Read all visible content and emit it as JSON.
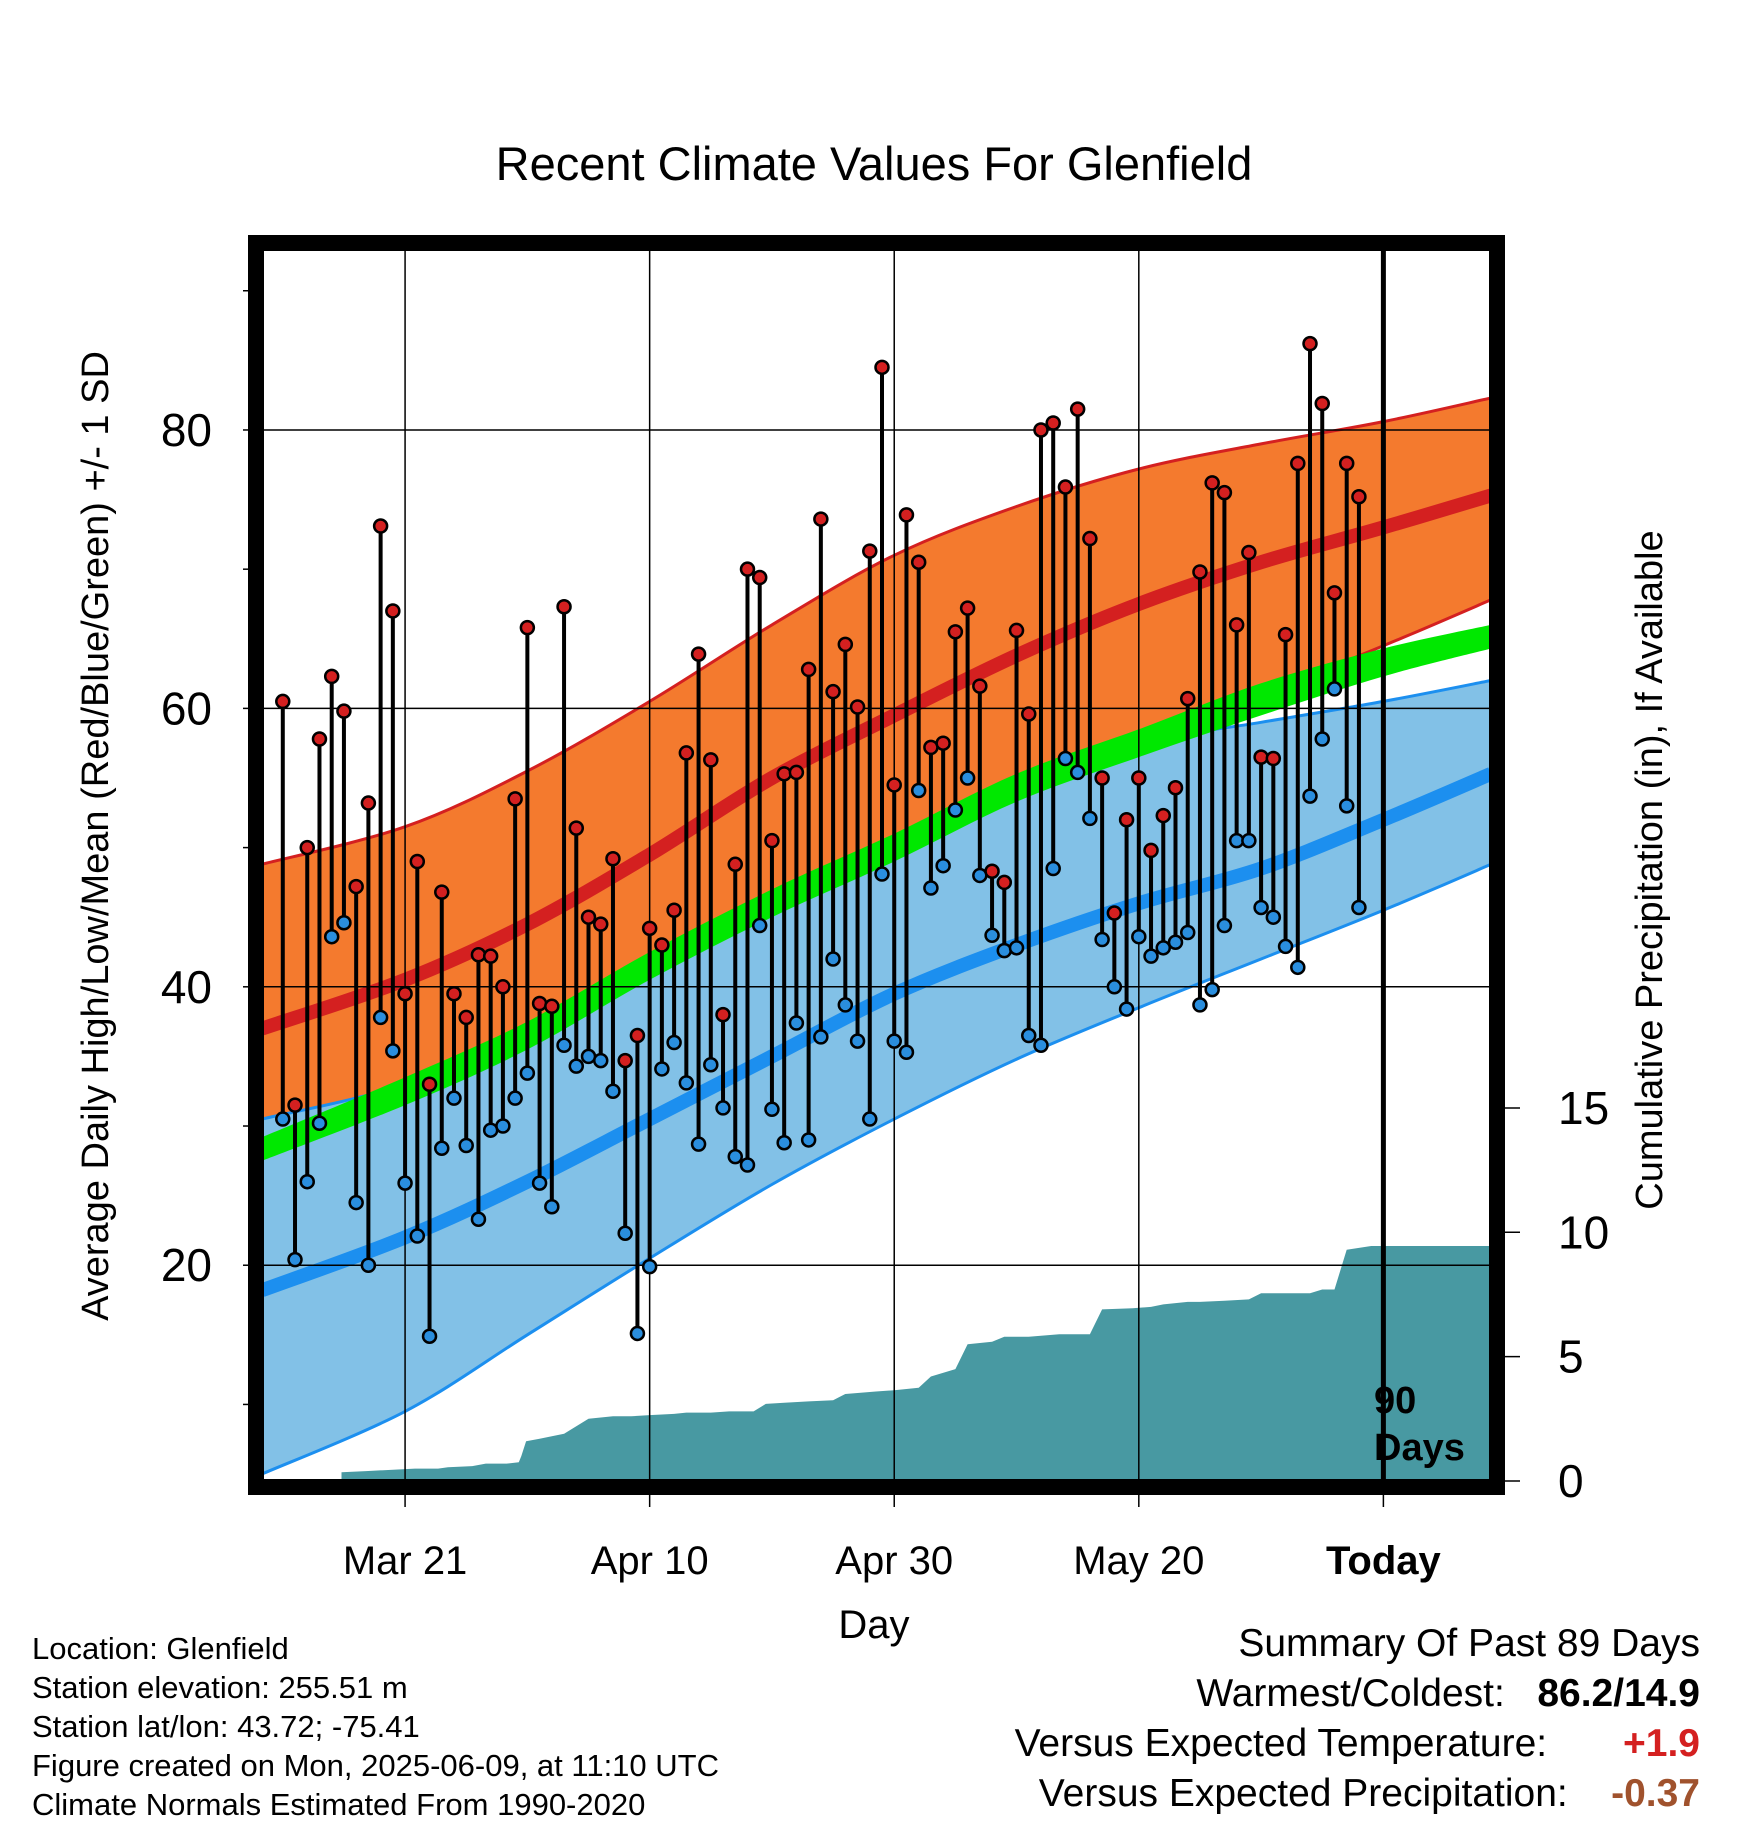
{
  "chart_data": {
    "type": "line",
    "title": "Recent Climate Values For Glenfield",
    "xlabel": "Day",
    "ylabel": "Average Daily High/Low/Mean (Red/Blue/Green) +/- 1 SD",
    "y2label": "Cumulative Precipitation (in), If Available",
    "x_ticks": [
      "Mar 21",
      "Apr 10",
      "Apr 30",
      "May 20",
      "Today"
    ],
    "x_tick_days": [
      10,
      30,
      50,
      70,
      90
    ],
    "xlim": [
      -1.7,
      98.8
    ],
    "ylim": [
      4.5,
      93
    ],
    "y_ticks": [
      20,
      40,
      60,
      80
    ],
    "y2lim": [
      0,
      17
    ],
    "y2_ticks": [
      0,
      5,
      10,
      15
    ],
    "grid": true,
    "today_day": 90,
    "today_label": [
      "90",
      "Days"
    ],
    "normals": {
      "day": [
        -1.7,
        10,
        20,
        30,
        40,
        50,
        60,
        70,
        80,
        90,
        98.8
      ],
      "high_mean": [
        37.0,
        40.5,
        44.5,
        49.5,
        55.0,
        59.5,
        63.8,
        67.5,
        70.5,
        73.0,
        75.3
      ],
      "high_upper": [
        48.8,
        51.5,
        55.5,
        60.5,
        66.0,
        71.0,
        74.5,
        77.2,
        79.0,
        80.6,
        82.3
      ],
      "high_lower": [
        27.0,
        30.0,
        34.0,
        39.0,
        44.2,
        49.0,
        53.5,
        57.8,
        61.0,
        64.5,
        67.8
      ],
      "mean_lower": [
        27.5,
        31.5,
        35.5,
        40.5,
        45.0,
        49.0,
        53.3,
        56.5,
        59.5,
        62.3,
        64.3
      ],
      "mean_upper": [
        29.2,
        33.5,
        37.5,
        42.5,
        47.0,
        51.0,
        55.3,
        58.5,
        61.8,
        64.3,
        66.0
      ],
      "low_mean": [
        18.2,
        22.0,
        26.0,
        30.5,
        35.0,
        39.5,
        43.0,
        46.0,
        48.5,
        52.0,
        55.3
      ],
      "low_upper": [
        30.5,
        33.0,
        37.0,
        41.5,
        46.5,
        50.5,
        54.5,
        57.5,
        59.0,
        60.5,
        62.0
      ],
      "low_lower": [
        5.0,
        9.5,
        15.0,
        20.5,
        25.8,
        30.5,
        34.8,
        38.5,
        42.0,
        45.5,
        48.8
      ]
    },
    "highs": [
      60.5,
      31.5,
      50,
      57.8,
      62.3,
      59.8,
      47.2,
      53.2,
      73.1,
      67.0,
      39.5,
      49.0,
      33.0,
      46.8,
      39.5,
      37.8,
      42.3,
      42.2,
      40.0,
      53.5,
      65.8,
      38.8,
      38.6,
      67.3,
      51.4,
      45.0,
      44.5,
      49.2,
      34.7,
      36.5,
      44.2,
      43.0,
      45.5,
      56.8,
      63.9,
      56.3,
      38.0,
      48.8,
      70.0,
      69.4,
      50.5,
      55.3,
      55.4,
      62.8,
      73.6,
      61.2,
      64.6,
      60.1,
      71.3,
      84.5,
      54.5,
      73.9,
      70.5,
      57.2,
      57.5,
      65.5,
      67.2,
      61.6,
      48.3,
      47.5,
      65.6,
      59.6,
      80.0,
      80.5,
      75.9,
      81.5,
      72.2,
      55.0,
      45.3,
      52.0,
      55.0,
      49.8,
      52.3,
      54.3,
      60.7,
      69.8,
      76.2,
      75.5,
      66.0,
      71.2,
      56.5,
      56.4,
      65.3,
      77.6,
      86.2,
      81.9,
      68.3,
      77.6,
      75.2
    ],
    "lows": [
      30.5,
      20.4,
      26.0,
      30.2,
      43.6,
      44.6,
      24.5,
      20.0,
      37.8,
      35.4,
      25.9,
      22.1,
      14.9,
      28.4,
      32.0,
      28.6,
      23.3,
      29.7,
      30.0,
      32.0,
      33.8,
      25.9,
      24.2,
      35.8,
      34.3,
      35.0,
      34.7,
      32.5,
      22.3,
      15.1,
      19.9,
      34.1,
      36.0,
      33.1,
      28.7,
      34.4,
      31.3,
      27.8,
      27.2,
      44.4,
      31.2,
      28.8,
      37.4,
      29.0,
      36.4,
      42.0,
      38.7,
      36.1,
      30.5,
      48.1,
      36.1,
      35.3,
      54.1,
      47.1,
      48.7,
      52.7,
      55.0,
      48.0,
      43.7,
      42.6,
      42.8,
      36.5,
      35.8,
      48.5,
      56.4,
      55.4,
      52.1,
      43.4,
      40.0,
      38.4,
      43.6,
      42.2,
      42.8,
      43.2,
      43.9,
      38.7,
      39.8,
      44.4,
      50.5,
      50.5,
      45.7,
      45.0,
      42.9,
      41.4,
      53.7,
      57.8,
      61.4,
      53.0,
      45.7
    ],
    "precip_cumulative_steps": [
      [
        4.8,
        0.35
      ],
      [
        6.8,
        0.4
      ],
      [
        10.8,
        0.5
      ],
      [
        12.7,
        0.5
      ],
      [
        13.5,
        0.55
      ],
      [
        15.5,
        0.6
      ],
      [
        16.6,
        0.7
      ],
      [
        18.3,
        0.7
      ],
      [
        19.3,
        0.75
      ],
      [
        19.5,
        1.0
      ],
      [
        19.9,
        1.6
      ],
      [
        21.0,
        1.7
      ],
      [
        22.0,
        1.8
      ],
      [
        23.0,
        1.9
      ],
      [
        24.0,
        2.2
      ],
      [
        25.0,
        2.5
      ],
      [
        27.0,
        2.6
      ],
      [
        28.5,
        2.6
      ],
      [
        30.0,
        2.65
      ],
      [
        32.0,
        2.7
      ],
      [
        33.0,
        2.75
      ],
      [
        35.0,
        2.75
      ],
      [
        36.5,
        2.8
      ],
      [
        38.5,
        2.8
      ],
      [
        39.5,
        3.1
      ],
      [
        41.0,
        3.15
      ],
      [
        43.0,
        3.2
      ],
      [
        45.0,
        3.25
      ],
      [
        46.0,
        3.5
      ],
      [
        48.5,
        3.6
      ],
      [
        50.0,
        3.65
      ],
      [
        52.0,
        3.75
      ],
      [
        53.0,
        4.2
      ],
      [
        55.0,
        4.5
      ],
      [
        56.0,
        5.5
      ],
      [
        58.0,
        5.6
      ],
      [
        59.0,
        5.8
      ],
      [
        61.0,
        5.8
      ],
      [
        63.5,
        5.9
      ],
      [
        66.0,
        5.9
      ],
      [
        67.0,
        6.9
      ],
      [
        69.5,
        6.95
      ],
      [
        71.0,
        7.0
      ],
      [
        72.0,
        7.1
      ],
      [
        74.0,
        7.2
      ],
      [
        75.0,
        7.2
      ],
      [
        77.0,
        7.25
      ],
      [
        79.0,
        7.3
      ],
      [
        80.0,
        7.55
      ],
      [
        82.0,
        7.55
      ],
      [
        84.0,
        7.55
      ],
      [
        85.0,
        7.7
      ],
      [
        86.0,
        7.7
      ],
      [
        87.0,
        9.3
      ],
      [
        89.0,
        9.45
      ],
      [
        98.8,
        9.45
      ]
    ]
  },
  "footer": {
    "location": "Location: Glenfield",
    "elevation": "Station elevation: 255.51 m",
    "latlon": "Station lat/lon: 43.72; -75.41",
    "created": "Figure created on Mon, 2025-06-09, at 11:10 UTC",
    "normals": "Climate Normals Estimated From 1990-2020"
  },
  "summary": {
    "title": "Summary Of Past 89 Days",
    "warm_cold_label": "Warmest/Coldest:",
    "warm_cold_value": "86.2/14.9",
    "temp_label": "Versus Expected Temperature:",
    "temp_value": "+1.9",
    "precip_label": "Versus Expected Precipitation:",
    "precip_value": "-0.37"
  },
  "colors": {
    "high_band": "#f47a2e",
    "high_line": "#d42020",
    "mean_band": "#00e800",
    "low_band": "#82c1e7",
    "low_line": "#1c8fef",
    "precip": "#4899a2",
    "high_marker": "#d42020",
    "low_marker": "#2a8ede",
    "temp_value": "#d42020",
    "precip_value": "#a0522d"
  }
}
